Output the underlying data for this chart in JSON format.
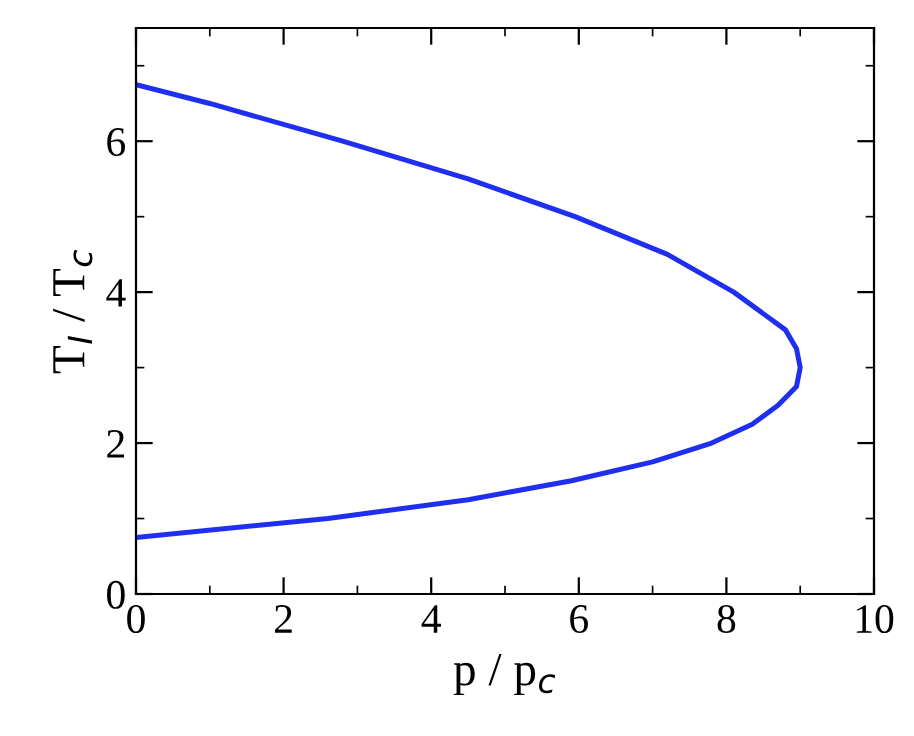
{
  "chart_data": {
    "type": "line",
    "xlabel": "p / p$_{c}$",
    "ylabel": "T$_{I}$ / T$_{c}$",
    "series": [
      {
        "color": "#1f2ff0",
        "x": [
          0,
          2.6,
          4.5,
          5.9,
          7.0,
          7.8,
          8.35,
          8.7,
          8.95,
          9,
          8.95,
          8.8,
          8.1,
          7.2,
          5.95,
          4.5,
          2.8,
          1.0,
          0
        ],
        "values": [
          0.75,
          1,
          1.25,
          1.5,
          1.75,
          2,
          2.25,
          2.5,
          2.75,
          3,
          3.25,
          3.5,
          4,
          4.5,
          5,
          5.5,
          6,
          6.5,
          6.75
        ]
      }
    ],
    "xlim": [
      0,
      10
    ],
    "ylim": [
      0,
      7.5
    ],
    "xticks": [
      0,
      2,
      4,
      6,
      8,
      10
    ],
    "yticks": [
      0,
      2,
      4,
      6
    ],
    "grid": false,
    "legend": false,
    "marker": "none",
    "line_style": "solid"
  }
}
